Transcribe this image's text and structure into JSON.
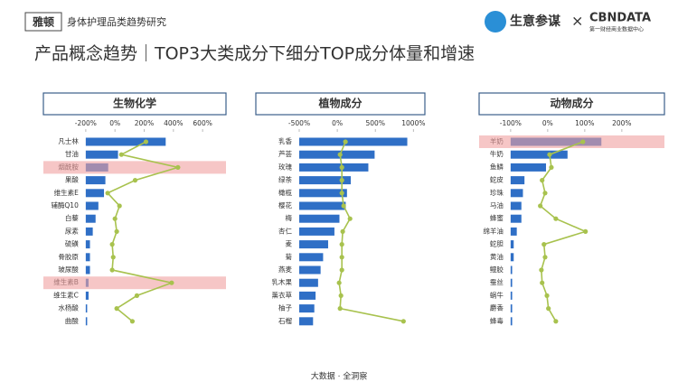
{
  "header": {
    "logo": "雅顿",
    "report": "身体护理品类趋势研究",
    "title": "产品概念趋势｜TOP3大类成分下细分TOP成分体量和增速",
    "brand1": "生意参谋",
    "times": "×",
    "brand2": "CBNDATA",
    "brand2_sub": "第一财经商业数据中心"
  },
  "footer": "大数据 · 全洞察",
  "chart_data": [
    {
      "type": "bar",
      "title": "生物化学",
      "categories": [
        "凡士林",
        "甘油",
        "烟酰胺",
        "果酸",
        "维生素E",
        "辅酶Q10",
        "白藜",
        "尿素",
        "硫磺",
        "骨胶原",
        "玻尿酸",
        "维生素B",
        "维生素C",
        "水杨酸",
        "曲酸"
      ],
      "xlim": [
        -490,
        760
      ],
      "xticks": [
        {
          "value": -200,
          "label": "-200%"
        },
        {
          "value": 0,
          "label": "0%"
        },
        {
          "value": 200,
          "label": "200%"
        },
        {
          "value": 400,
          "label": "400%"
        },
        {
          "value": 600,
          "label": "600%"
        }
      ],
      "x2lim": [
        0,
        100
      ],
      "highlight": [
        2,
        11
      ],
      "highlight_color": "#f0a0a0",
      "series": [
        {
          "type": "bar",
          "axis": "x2",
          "color": "#2f6fc6",
          "values": [
            57,
            23,
            16,
            14,
            13,
            9,
            7,
            5,
            3,
            3,
            3,
            2,
            2,
            1,
            1
          ]
        },
        {
          "type": "line",
          "color": "#a8c24e",
          "values": [
            212,
            44,
            431,
            138,
            -50,
            31,
            0,
            12,
            -19,
            -12,
            -19,
            388,
            150,
            12,
            119
          ]
        }
      ]
    },
    {
      "type": "bar",
      "title": "植物成分",
      "categories": [
        "乳香",
        "芦荟",
        "玫瑰",
        "绿茶",
        "橄榄",
        "樱花",
        "梅",
        "杏仁",
        "麦",
        "菊",
        "燕麦",
        "乳木果",
        "薰衣草",
        "柚子",
        "石榴"
      ],
      "xlim": [
        -1070,
        1150
      ],
      "xticks": [
        {
          "value": -500,
          "label": "-500%"
        },
        {
          "value": 0,
          "label": "0%"
        },
        {
          "value": 500,
          "label": "500%"
        },
        {
          "value": 1000,
          "label": "1000%"
        }
      ],
      "x2lim": [
        0,
        100
      ],
      "highlight": [],
      "highlight_color": "#f0a0a0",
      "series": [
        {
          "type": "bar",
          "axis": "x2",
          "color": "#2f6fc6",
          "values": [
            86,
            60,
            55,
            41,
            38,
            37,
            32,
            28,
            23,
            19,
            17,
            15,
            13,
            12,
            11
          ]
        },
        {
          "type": "line",
          "color": "#a8c24e",
          "values": [
            107,
            36,
            60,
            60,
            60,
            83,
            167,
            71,
            60,
            60,
            60,
            24,
            48,
            36,
            869
          ]
        }
      ]
    },
    {
      "type": "bar",
      "title": "动物成分",
      "categories": [
        "羊奶",
        "牛奶",
        "鱼鳞",
        "蛇皮",
        "珍珠",
        "马油",
        "蜂蜜",
        "绵羊油",
        "蛇胆",
        "黄油",
        "鳗胶",
        "蚕丝",
        "蜗牛",
        "麝香",
        "蜂毒"
      ],
      "xlim": [
        -185,
        315
      ],
      "xticks": [
        {
          "value": -100,
          "label": "-100%"
        },
        {
          "value": 0,
          "label": "0%"
        },
        {
          "value": 100,
          "label": "100%"
        },
        {
          "value": 200,
          "label": "200%"
        }
      ],
      "x2lim": [
        0,
        100
      ],
      "highlight": [
        0
      ],
      "highlight_color": "#f0a0a0",
      "series": [
        {
          "type": "bar",
          "axis": "x2",
          "color": "#2f6fc6",
          "values": [
            59,
            37,
            23,
            9,
            8,
            7,
            7,
            4,
            2,
            2,
            1,
            1,
            1,
            1,
            1
          ]
        },
        {
          "type": "line",
          "color": "#a8c24e",
          "values": [
            95,
            5,
            10,
            -15,
            -7,
            -20,
            22,
            102,
            -10,
            -7,
            -17,
            -15,
            -2,
            2,
            22
          ]
        }
      ]
    }
  ]
}
